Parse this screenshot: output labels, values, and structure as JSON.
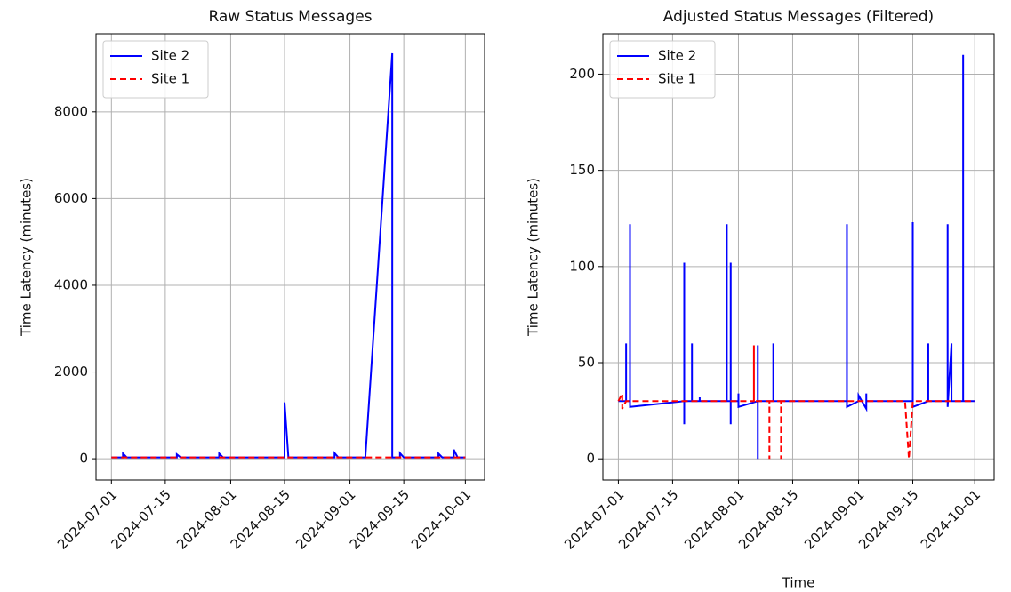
{
  "chart_data": [
    {
      "type": "line",
      "title": "Raw Status Messages",
      "ylabel": "Time Latency (minutes)",
      "xlim": [
        "2024-06-27",
        "2024-10-06"
      ],
      "ylim": [
        -490,
        9800
      ],
      "xticks": [
        "2024-07-01",
        "2024-07-15",
        "2024-08-01",
        "2024-08-15",
        "2024-09-01",
        "2024-09-15",
        "2024-10-01"
      ],
      "yticks": [
        0,
        2000,
        4000,
        6000,
        8000
      ],
      "grid": true,
      "legend": "upper-left",
      "series": [
        {
          "name": "Site 2",
          "color": "#0000ff",
          "dash": false,
          "x": [
            "2024-07-01",
            "2024-07-04",
            "2024-07-04",
            "2024-07-05",
            "2024-07-18",
            "2024-07-18",
            "2024-07-19",
            "2024-07-29",
            "2024-07-29",
            "2024-07-30",
            "2024-08-15",
            "2024-08-15",
            "2024-08-16",
            "2024-08-28",
            "2024-08-28",
            "2024-08-29",
            "2024-09-05",
            "2024-09-12",
            "2024-09-12",
            "2024-09-14",
            "2024-09-14",
            "2024-09-15",
            "2024-09-24",
            "2024-09-24",
            "2024-09-25",
            "2024-09-28",
            "2024-09-28",
            "2024-09-29",
            "2024-10-01"
          ],
          "values": [
            30,
            30,
            120,
            30,
            30,
            100,
            30,
            30,
            120,
            30,
            30,
            1300,
            30,
            30,
            130,
            30,
            30,
            9350,
            30,
            30,
            130,
            30,
            30,
            120,
            30,
            30,
            210,
            30,
            30
          ]
        },
        {
          "name": "Site 1",
          "color": "#ff0000",
          "dash": true,
          "x": [
            "2024-07-01",
            "2024-10-01"
          ],
          "values": [
            30,
            30
          ]
        }
      ]
    },
    {
      "type": "line",
      "title": "Adjusted Status Messages (Filtered)",
      "xlabel": "Time",
      "ylabel": "Time Latency (minutes)",
      "xlim": [
        "2024-06-27",
        "2024-10-06"
      ],
      "ylim": [
        -11,
        221
      ],
      "xticks": [
        "2024-07-01",
        "2024-07-15",
        "2024-08-01",
        "2024-08-15",
        "2024-09-01",
        "2024-09-15",
        "2024-10-01"
      ],
      "yticks": [
        0,
        50,
        100,
        150,
        200
      ],
      "grid": true,
      "legend": "upper-left",
      "series": [
        {
          "name": "Site 2",
          "color": "#0000ff",
          "dash": false,
          "x": [
            "2024-07-01",
            "2024-07-03",
            "2024-07-03",
            "2024-07-03",
            "2024-07-04",
            "2024-07-04",
            "2024-07-04",
            "2024-07-18",
            "2024-07-18",
            "2024-07-18",
            "2024-07-18",
            "2024-07-20",
            "2024-07-20",
            "2024-07-20",
            "2024-07-22",
            "2024-07-22",
            "2024-07-22",
            "2024-07-29",
            "2024-07-29",
            "2024-07-29",
            "2024-07-30",
            "2024-07-30",
            "2024-07-30",
            "2024-07-30",
            "2024-08-01",
            "2024-08-01",
            "2024-08-01",
            "2024-08-06",
            "2024-08-06",
            "2024-08-06",
            "2024-08-06",
            "2024-08-10",
            "2024-08-10",
            "2024-08-10",
            "2024-08-29",
            "2024-08-29",
            "2024-08-29",
            "2024-09-01",
            "2024-09-01",
            "2024-09-03",
            "2024-09-03",
            "2024-09-03",
            "2024-09-15",
            "2024-09-15",
            "2024-09-15",
            "2024-09-19",
            "2024-09-19",
            "2024-09-19",
            "2024-09-24",
            "2024-09-24",
            "2024-09-24",
            "2024-09-25",
            "2024-09-25",
            "2024-09-28",
            "2024-09-28",
            "2024-09-28",
            "2024-10-01"
          ],
          "values": [
            30,
            30,
            60,
            30,
            30,
            122,
            27,
            30,
            102,
            18,
            30,
            30,
            60,
            30,
            30,
            32,
            30,
            30,
            122,
            30,
            30,
            102,
            18,
            30,
            30,
            34,
            27,
            30,
            0,
            59,
            30,
            30,
            60,
            30,
            30,
            122,
            27,
            30,
            33,
            26,
            34,
            30,
            30,
            123,
            27,
            30,
            60,
            30,
            30,
            122,
            27,
            60,
            30,
            30,
            210,
            30,
            30
          ]
        },
        {
          "name": "Site 1",
          "color": "#ff0000",
          "dash": true,
          "x": [
            "2024-07-01",
            "2024-07-02",
            "2024-07-02",
            "2024-07-03",
            "2024-08-05",
            "2024-08-05",
            "2024-08-05",
            "2024-08-09",
            "2024-08-09",
            "2024-08-09",
            "2024-08-12",
            "2024-08-12",
            "2024-08-12",
            "2024-09-13",
            "2024-09-14",
            "2024-09-15",
            "2024-10-01"
          ],
          "values": [
            30,
            34,
            26,
            30,
            30,
            59,
            30,
            30,
            0,
            30,
            30,
            0,
            30,
            30,
            0,
            30,
            30
          ]
        }
      ]
    }
  ]
}
